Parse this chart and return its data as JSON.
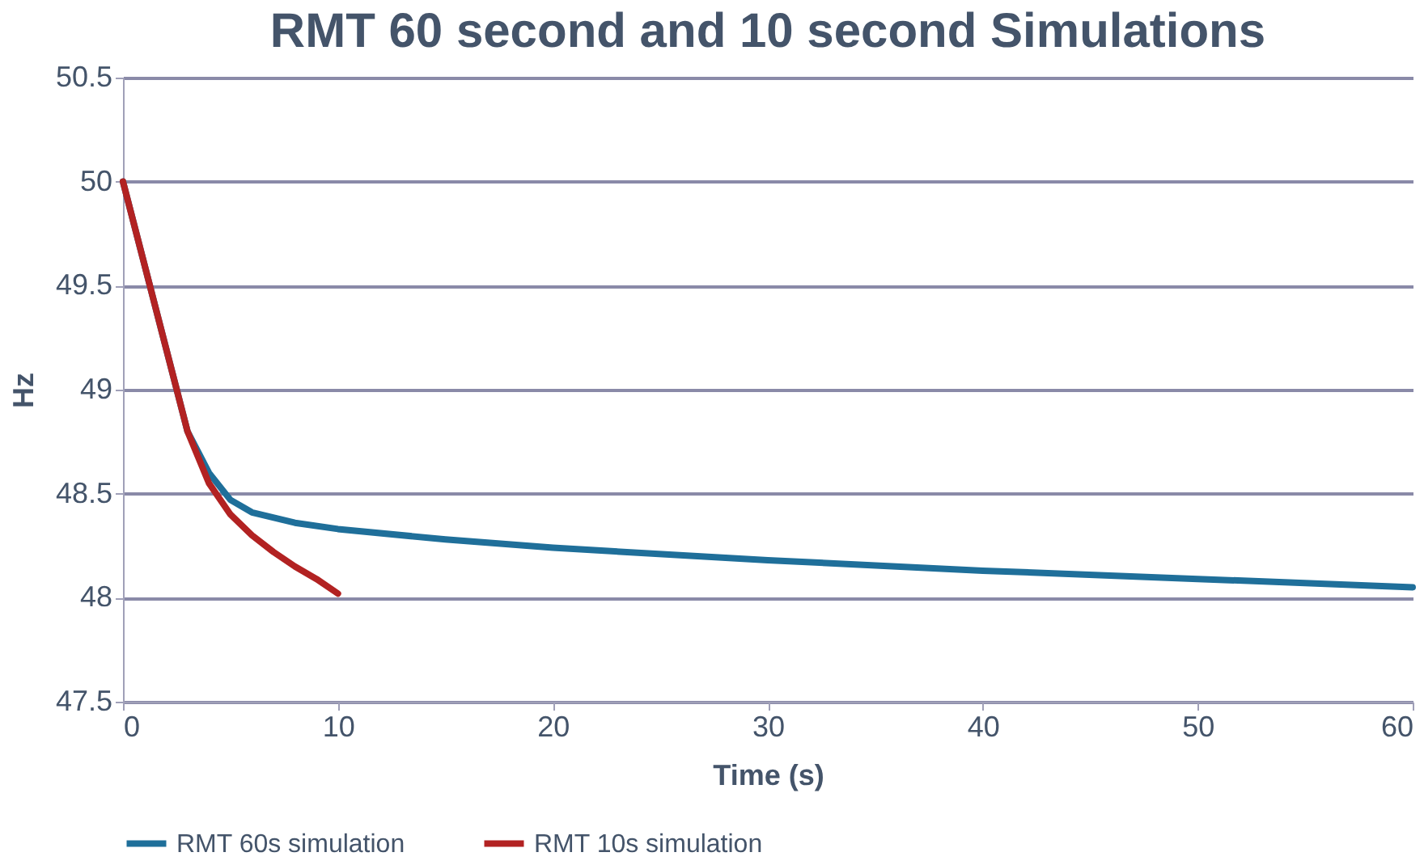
{
  "chart_data": {
    "type": "line",
    "title": "RMT 60 second and 10 second Simulations",
    "xlabel": "Time (s)",
    "ylabel": "Hz",
    "xlim": [
      0,
      60
    ],
    "xticks": [
      0,
      10,
      20,
      30,
      40,
      50,
      60
    ],
    "ylim": [
      47.5,
      50.5
    ],
    "yticks": [
      47.5,
      48,
      48.5,
      49,
      49.5,
      50,
      50.5
    ],
    "grid": "y",
    "legend": "bottom",
    "marker": "none",
    "line_style": "solid",
    "series": [
      {
        "name": "RMT 60s simulation",
        "color": "#1f6f9a",
        "x": [
          0,
          1,
          2,
          3,
          4,
          5,
          6,
          8,
          10,
          15,
          20,
          30,
          40,
          50,
          60
        ],
        "values": [
          50,
          49.6,
          49.2,
          48.8,
          48.6,
          48.47,
          48.41,
          48.36,
          48.33,
          48.28,
          48.24,
          48.18,
          48.13,
          48.09,
          48.05
        ]
      },
      {
        "name": "RMT 10s simulation",
        "color": "#b22222",
        "x": [
          0,
          1,
          2,
          3,
          4,
          5,
          6,
          7,
          8,
          9,
          10
        ],
        "values": [
          50,
          49.6,
          49.2,
          48.8,
          48.55,
          48.4,
          48.3,
          48.22,
          48.15,
          48.09,
          48.02
        ]
      }
    ]
  }
}
